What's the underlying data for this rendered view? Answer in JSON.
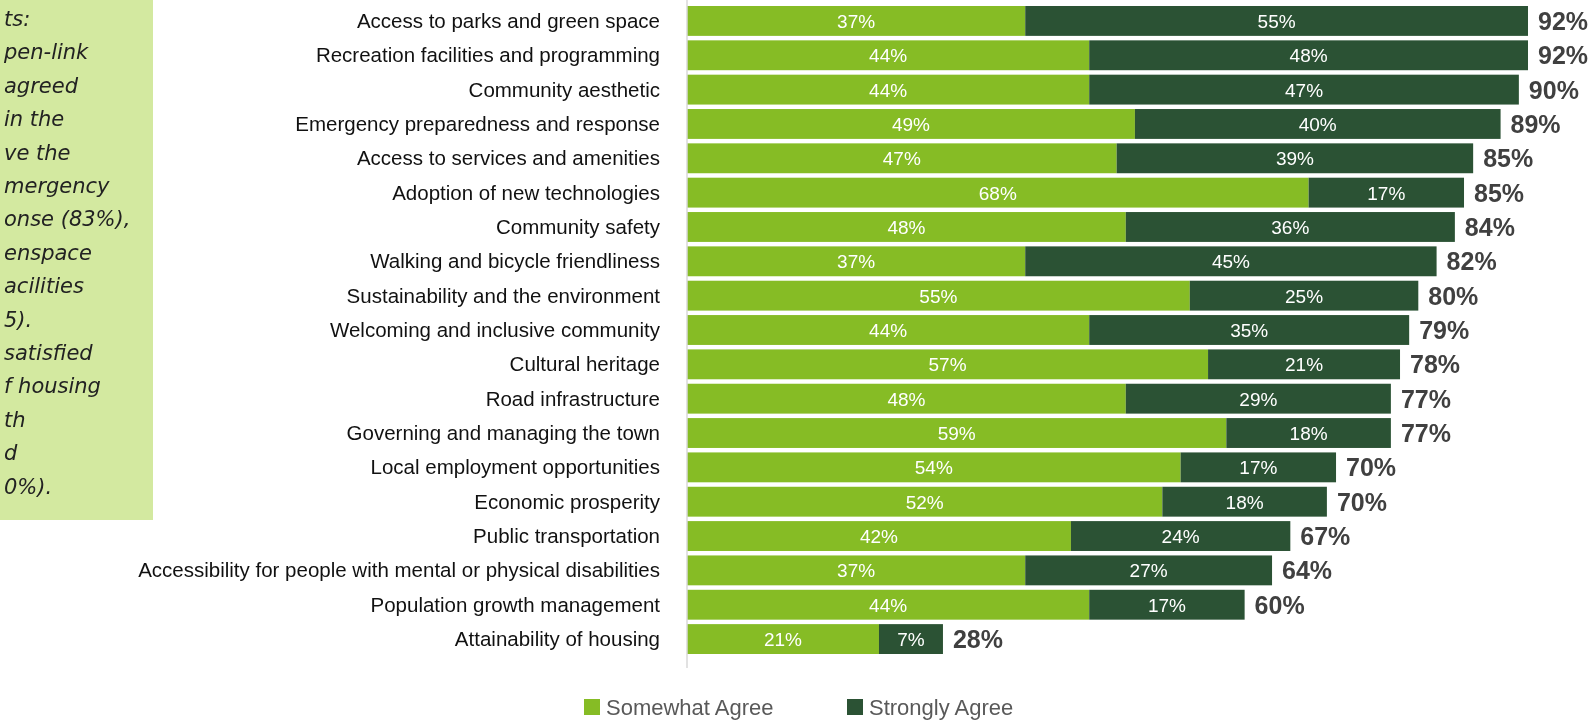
{
  "chart_data": {
    "type": "bar",
    "orientation": "horizontal",
    "stacked": true,
    "categories": [
      "Access to parks and green space",
      "Recreation facilities and programming",
      "Community aesthetic",
      "Emergency preparedness and response",
      "Access to services and amenities",
      "Adoption of new technologies",
      "Community safety",
      "Walking and bicycle friendliness",
      "Sustainability and the environment",
      "Welcoming and inclusive community",
      "Cultural heritage",
      "Road infrastructure",
      "Governing and managing the town",
      "Local employment opportunities",
      "Economic prosperity",
      "Public transportation",
      "Accessibility for people with mental or physical disabilities",
      "Population growth management",
      "Attainability of housing"
    ],
    "series": [
      {
        "name": "Somewhat Agree",
        "color": "#86bc25",
        "values": [
          37,
          44,
          44,
          49,
          47,
          68,
          48,
          37,
          55,
          44,
          57,
          48,
          59,
          54,
          52,
          42,
          37,
          44,
          21
        ],
        "value_labels": [
          "37%",
          "44%",
          "44%",
          "49%",
          "47%",
          "68%",
          "48%",
          "37%",
          "55%",
          "44%",
          "57%",
          "48%",
          "59%",
          "54%",
          "52%",
          "42%",
          "37%",
          "44%",
          "21%"
        ]
      },
      {
        "name": "Strongly Agree",
        "color": "#2b5234",
        "values": [
          55,
          48,
          47,
          40,
          39,
          17,
          36,
          45,
          25,
          35,
          21,
          29,
          18,
          17,
          18,
          24,
          27,
          17,
          7
        ],
        "value_labels": [
          "55%",
          "48%",
          "47%",
          "40%",
          "39%",
          "17%",
          "36%",
          "45%",
          "25%",
          "35%",
          "21%",
          "29%",
          "18%",
          "17%",
          "18%",
          "24%",
          "27%",
          "17%",
          "7%"
        ]
      }
    ],
    "totals": [
      "92%",
      "92%",
      "90%",
      "89%",
      "85%",
      "85%",
      "84%",
      "82%",
      "80%",
      "79%",
      "78%",
      "77%",
      "77%",
      "70%",
      "70%",
      "67%",
      "64%",
      "60%",
      "28%"
    ],
    "legend": "bottom",
    "annotations": [
      "ts:",
      "pen-link",
      "agreed",
      "in the",
      "ve the",
      "mergency",
      "onse (83%),",
      "enspace",
      "acilities",
      "5).",
      "satisfied",
      "f housing",
      "th",
      "d",
      "0%)."
    ]
  }
}
